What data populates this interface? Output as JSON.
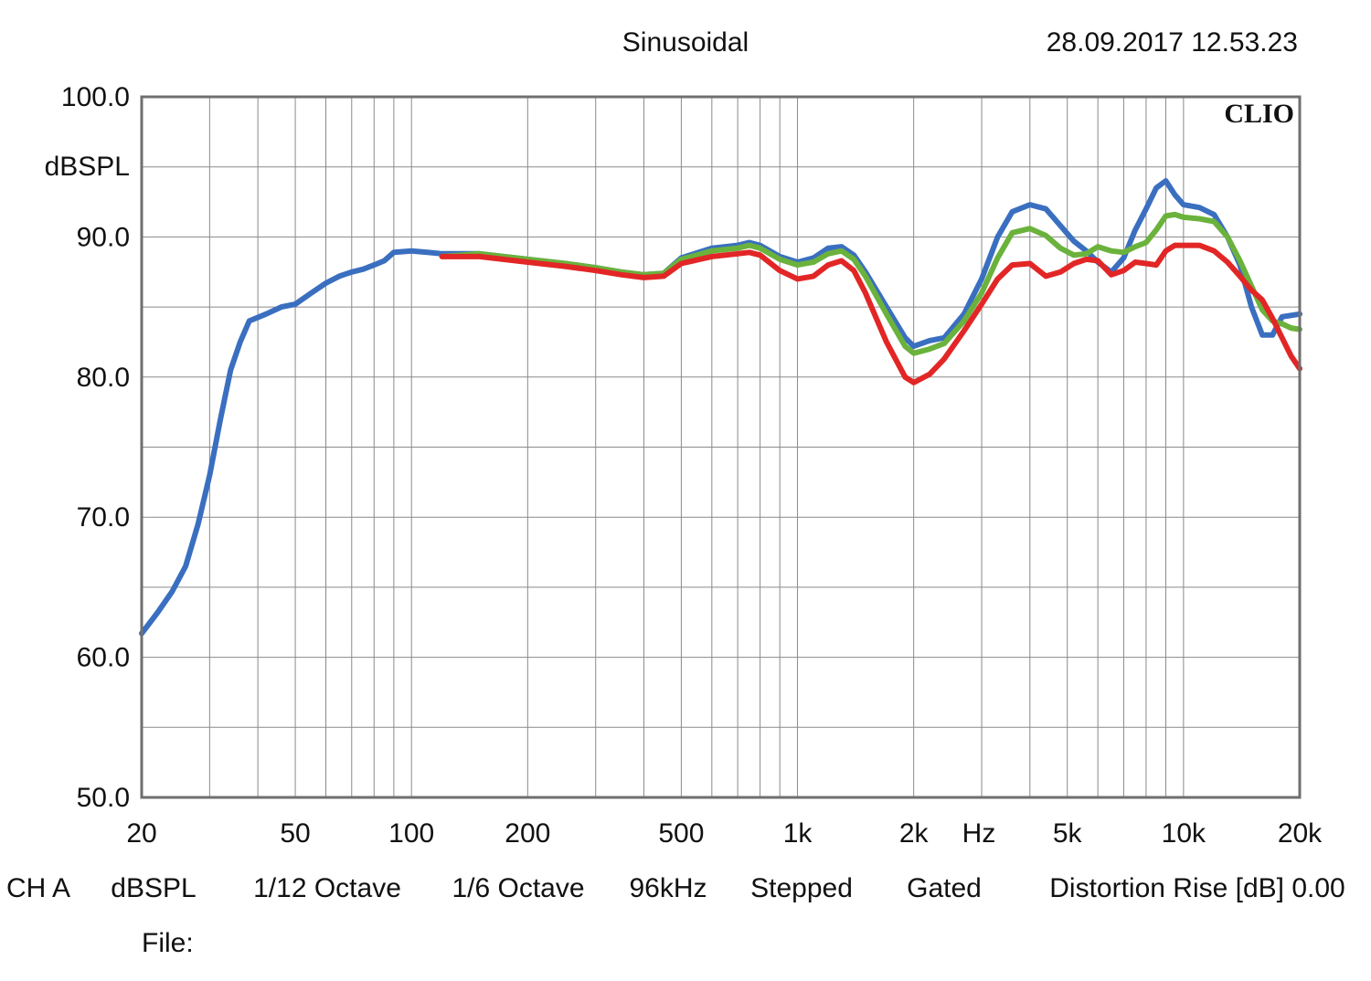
{
  "header": {
    "mode": "Sinusoidal",
    "datetime": "28.09.2017 12.53.23",
    "brand": "CLIO"
  },
  "footer": {
    "line1": [
      "CH A",
      "dBSPL",
      "1/12 Octave",
      "1/6 Octave",
      "96kHz",
      "Stepped",
      "Gated",
      "Distortion Rise [dB] 0.00"
    ],
    "file_label": "File:"
  },
  "chart_data": {
    "type": "line",
    "xscale": "log",
    "xlim": [
      20,
      20000
    ],
    "ylim": [
      50,
      100
    ],
    "ylabel": "dBSPL",
    "xunit": "Hz",
    "grid": true,
    "yticks": [
      {
        "value": 100,
        "label": "100.0"
      },
      {
        "value": 90,
        "label": "90.0"
      },
      {
        "value": 80,
        "label": "80.0"
      },
      {
        "value": 70,
        "label": "70.0"
      },
      {
        "value": 60,
        "label": "60.0"
      },
      {
        "value": 50,
        "label": "50.0"
      }
    ],
    "xticks": [
      {
        "value": 20,
        "label": "20"
      },
      {
        "value": 50,
        "label": "50"
      },
      {
        "value": 100,
        "label": "100"
      },
      {
        "value": 200,
        "label": "200"
      },
      {
        "value": 500,
        "label": "500"
      },
      {
        "value": 1000,
        "label": "1k"
      },
      {
        "value": 2000,
        "label": "2k"
      },
      {
        "value": 5000,
        "label": "5k"
      },
      {
        "value": 10000,
        "label": "10k"
      },
      {
        "value": 20000,
        "label": "20k"
      }
    ],
    "series": [
      {
        "color": "#3a6fc0",
        "points": [
          [
            20,
            61.7
          ],
          [
            22,
            63.2
          ],
          [
            24,
            64.7
          ],
          [
            26,
            66.5
          ],
          [
            28,
            69.5
          ],
          [
            30,
            73
          ],
          [
            32,
            77
          ],
          [
            34,
            80.5
          ],
          [
            36,
            82.5
          ],
          [
            38,
            84
          ],
          [
            42,
            84.5
          ],
          [
            46,
            85
          ],
          [
            50,
            85.2
          ],
          [
            55,
            86
          ],
          [
            60,
            86.7
          ],
          [
            65,
            87.2
          ],
          [
            70,
            87.5
          ],
          [
            75,
            87.7
          ],
          [
            80,
            88
          ],
          [
            85,
            88.3
          ],
          [
            90,
            88.9
          ],
          [
            100,
            89
          ],
          [
            110,
            88.9
          ],
          [
            120,
            88.8
          ],
          [
            150,
            88.8
          ],
          [
            200,
            88.4
          ],
          [
            250,
            88.1
          ],
          [
            300,
            87.8
          ],
          [
            350,
            87.5
          ],
          [
            400,
            87.3
          ],
          [
            450,
            87.4
          ],
          [
            500,
            88.5
          ],
          [
            600,
            89.2
          ],
          [
            700,
            89.4
          ],
          [
            750,
            89.6
          ],
          [
            800,
            89.4
          ],
          [
            900,
            88.6
          ],
          [
            1000,
            88.2
          ],
          [
            1100,
            88.5
          ],
          [
            1200,
            89.2
          ],
          [
            1300,
            89.3
          ],
          [
            1400,
            88.7
          ],
          [
            1500,
            87.5
          ],
          [
            1700,
            85
          ],
          [
            1900,
            82.8
          ],
          [
            2000,
            82.2
          ],
          [
            2200,
            82.6
          ],
          [
            2400,
            82.8
          ],
          [
            2700,
            84.5
          ],
          [
            3000,
            87
          ],
          [
            3300,
            90
          ],
          [
            3600,
            91.8
          ],
          [
            4000,
            92.3
          ],
          [
            4400,
            92
          ],
          [
            4800,
            90.8
          ],
          [
            5200,
            89.7
          ],
          [
            5600,
            89
          ],
          [
            6000,
            88.2
          ],
          [
            6500,
            87.5
          ],
          [
            7000,
            88.5
          ],
          [
            7500,
            90.5
          ],
          [
            8000,
            92
          ],
          [
            8500,
            93.5
          ],
          [
            9000,
            94
          ],
          [
            9500,
            93
          ],
          [
            10000,
            92.3
          ],
          [
            11000,
            92.1
          ],
          [
            12000,
            91.6
          ],
          [
            13000,
            90
          ],
          [
            14000,
            88
          ],
          [
            15000,
            85
          ],
          [
            16000,
            83
          ],
          [
            17000,
            83
          ],
          [
            18000,
            84.3
          ],
          [
            19000,
            84.4
          ],
          [
            20000,
            84.5
          ]
        ]
      },
      {
        "color": "#6ab23c",
        "points": [
          [
            120,
            88.6
          ],
          [
            150,
            88.8
          ],
          [
            200,
            88.4
          ],
          [
            250,
            88.1
          ],
          [
            300,
            87.8
          ],
          [
            350,
            87.5
          ],
          [
            400,
            87.3
          ],
          [
            450,
            87.4
          ],
          [
            500,
            88.4
          ],
          [
            600,
            89
          ],
          [
            700,
            89.2
          ],
          [
            750,
            89.4
          ],
          [
            800,
            89.2
          ],
          [
            900,
            88.4
          ],
          [
            1000,
            88
          ],
          [
            1100,
            88.2
          ],
          [
            1200,
            88.8
          ],
          [
            1300,
            89
          ],
          [
            1400,
            88.4
          ],
          [
            1500,
            87.2
          ],
          [
            1700,
            84.5
          ],
          [
            1900,
            82.2
          ],
          [
            2000,
            81.7
          ],
          [
            2200,
            82
          ],
          [
            2400,
            82.4
          ],
          [
            2700,
            84
          ],
          [
            3000,
            86
          ],
          [
            3300,
            88.5
          ],
          [
            3600,
            90.3
          ],
          [
            4000,
            90.6
          ],
          [
            4400,
            90.1
          ],
          [
            4800,
            89.2
          ],
          [
            5200,
            88.7
          ],
          [
            5600,
            88.8
          ],
          [
            6000,
            89.3
          ],
          [
            6500,
            89
          ],
          [
            7000,
            88.9
          ],
          [
            7500,
            89.3
          ],
          [
            8000,
            89.6
          ],
          [
            8500,
            90.5
          ],
          [
            9000,
            91.5
          ],
          [
            9500,
            91.6
          ],
          [
            10000,
            91.4
          ],
          [
            11000,
            91.3
          ],
          [
            12000,
            91.1
          ],
          [
            13000,
            90
          ],
          [
            14000,
            88.3
          ],
          [
            15000,
            86.5
          ],
          [
            16000,
            84.8
          ],
          [
            17000,
            84
          ],
          [
            18000,
            83.8
          ],
          [
            19000,
            83.5
          ],
          [
            20000,
            83.4
          ]
        ]
      },
      {
        "color": "#e22626",
        "points": [
          [
            120,
            88.6
          ],
          [
            150,
            88.6
          ],
          [
            200,
            88.2
          ],
          [
            250,
            87.9
          ],
          [
            300,
            87.6
          ],
          [
            350,
            87.3
          ],
          [
            400,
            87.1
          ],
          [
            450,
            87.2
          ],
          [
            500,
            88.1
          ],
          [
            600,
            88.6
          ],
          [
            700,
            88.8
          ],
          [
            750,
            88.9
          ],
          [
            800,
            88.7
          ],
          [
            900,
            87.6
          ],
          [
            1000,
            87
          ],
          [
            1100,
            87.2
          ],
          [
            1200,
            88
          ],
          [
            1300,
            88.3
          ],
          [
            1400,
            87.6
          ],
          [
            1500,
            86
          ],
          [
            1700,
            82.5
          ],
          [
            1900,
            80
          ],
          [
            2000,
            79.6
          ],
          [
            2200,
            80.2
          ],
          [
            2400,
            81.3
          ],
          [
            2700,
            83.3
          ],
          [
            3000,
            85.2
          ],
          [
            3300,
            87
          ],
          [
            3600,
            88
          ],
          [
            4000,
            88.1
          ],
          [
            4400,
            87.2
          ],
          [
            4800,
            87.5
          ],
          [
            5200,
            88.1
          ],
          [
            5600,
            88.4
          ],
          [
            6000,
            88.3
          ],
          [
            6500,
            87.3
          ],
          [
            7000,
            87.6
          ],
          [
            7500,
            88.2
          ],
          [
            8000,
            88.1
          ],
          [
            8500,
            88
          ],
          [
            9000,
            89
          ],
          [
            9500,
            89.4
          ],
          [
            10000,
            89.4
          ],
          [
            11000,
            89.4
          ],
          [
            12000,
            89
          ],
          [
            13000,
            88.2
          ],
          [
            14000,
            87.2
          ],
          [
            15000,
            86.2
          ],
          [
            16000,
            85.5
          ],
          [
            17000,
            84.2
          ],
          [
            18000,
            82.8
          ],
          [
            19000,
            81.5
          ],
          [
            20000,
            80.6
          ]
        ]
      }
    ]
  }
}
